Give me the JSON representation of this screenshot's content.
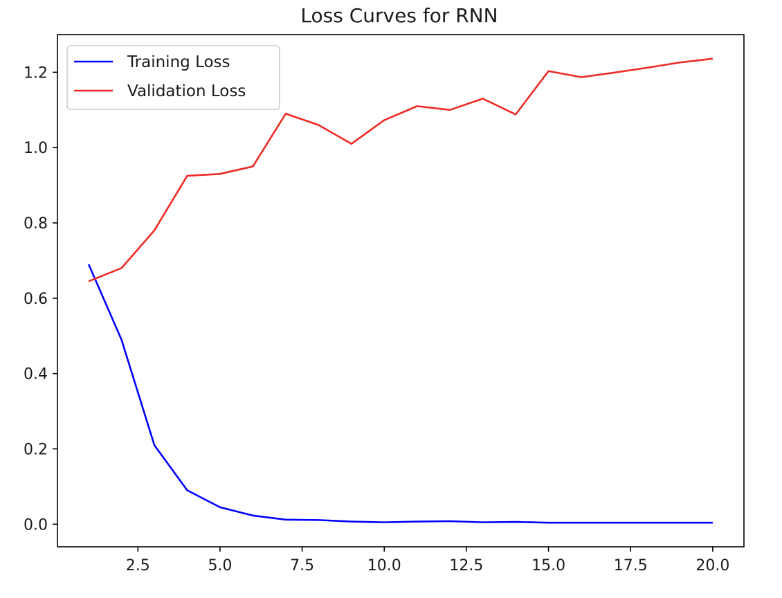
{
  "chart_data": {
    "type": "line",
    "title": "Loss Curves for RNN",
    "xlabel": "",
    "ylabel": "",
    "x": [
      1,
      2,
      3,
      4,
      5,
      6,
      7,
      8,
      9,
      10,
      11,
      12,
      13,
      14,
      15,
      16,
      17,
      18,
      19,
      20
    ],
    "series": [
      {
        "name": "Training Loss",
        "color": "#0000ff",
        "values": [
          0.69,
          0.49,
          0.21,
          0.09,
          0.045,
          0.023,
          0.012,
          0.011,
          0.007,
          0.005,
          0.007,
          0.008,
          0.005,
          0.006,
          0.004,
          0.004,
          0.004,
          0.004,
          0.004,
          0.004
        ]
      },
      {
        "name": "Validation Loss",
        "color": "#ee2a24",
        "values": [
          0.645,
          0.68,
          0.78,
          0.925,
          0.93,
          0.95,
          1.09,
          1.06,
          1.01,
          1.073,
          1.11,
          1.1,
          1.13,
          1.088,
          1.203,
          1.187,
          1.199,
          1.212,
          1.226,
          1.236
        ]
      }
    ],
    "xlim": [
      0.05,
      20.95
    ],
    "ylim": [
      -0.06,
      1.3
    ],
    "xticks": [
      2.5,
      5.0,
      7.5,
      10.0,
      12.5,
      15.0,
      17.5,
      20.0
    ],
    "xtick_labels": [
      "2.5",
      "5.0",
      "7.5",
      "10.0",
      "12.5",
      "15.0",
      "17.5",
      "20.0"
    ],
    "yticks": [
      0.0,
      0.2,
      0.4,
      0.6,
      0.8,
      1.0,
      1.2
    ],
    "ytick_labels": [
      "0.0",
      "0.2",
      "0.4",
      "0.6",
      "0.8",
      "1.0",
      "1.2"
    ],
    "grid": false,
    "legend_position": "upper-left"
  }
}
